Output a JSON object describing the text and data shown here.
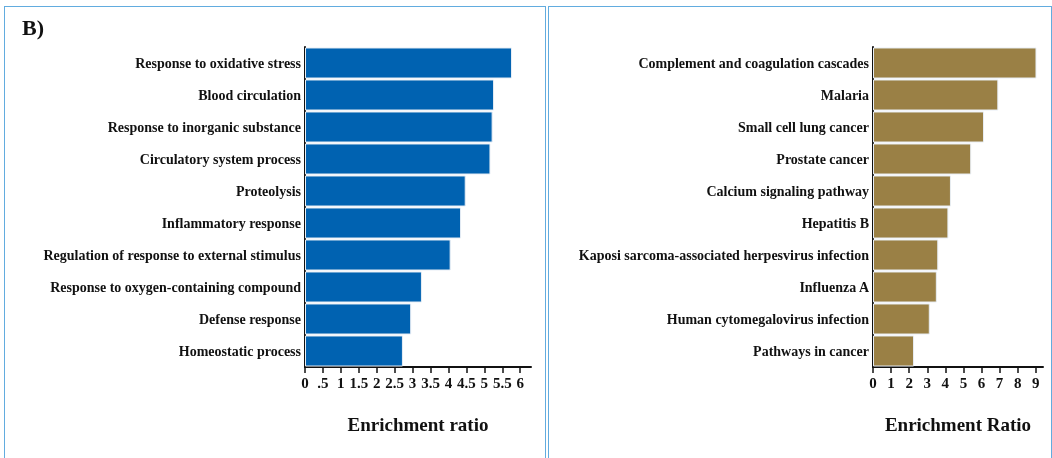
{
  "chart_data": [
    {
      "type": "bar",
      "title": "B)",
      "orientation": "horizontal",
      "color": "#0062b1",
      "xlabel": "Enrichment ratio",
      "categories": [
        "Response to oxidative stress",
        "Blood circulation",
        "Response to inorganic substance",
        "Circulatory system process",
        "Proteolysis",
        "Inflammatory response",
        "Regulation of response to external stimulus",
        "Response to oxygen-containing compound",
        "Defense response",
        "Homeostatic process"
      ],
      "values": [
        5.77,
        5.27,
        5.23,
        5.17,
        4.48,
        4.35,
        4.06,
        3.26,
        2.96,
        2.73
      ],
      "xlim": [
        0,
        6.3
      ],
      "xticks": [
        0,
        {
          "value": 0.5,
          "label": ".5"
        },
        1,
        1.5,
        2,
        2.5,
        3,
        3.5,
        4,
        4.5,
        5,
        5.5,
        6
      ]
    },
    {
      "type": "bar",
      "orientation": "horizontal",
      "color": "#9a8045",
      "xlabel": "Enrichment Ratio",
      "categories": [
        "Complement and coagulation cascades",
        "Malaria",
        "Small cell lung cancer",
        "Prostate cancer",
        "Calcium signaling pathway",
        "Hepatitis B",
        "Kaposi sarcoma-associated herpesvirus infection",
        "Influenza A",
        "Human cytomegalovirus infection",
        "Pathways in cancer"
      ],
      "values": [
        9.04,
        6.93,
        6.14,
        5.43,
        4.31,
        4.17,
        3.61,
        3.53,
        3.14,
        2.27
      ],
      "xlim": [
        0,
        9.4
      ],
      "xticks": [
        0,
        1,
        2,
        3,
        4,
        5,
        6,
        7,
        8,
        9
      ]
    }
  ]
}
